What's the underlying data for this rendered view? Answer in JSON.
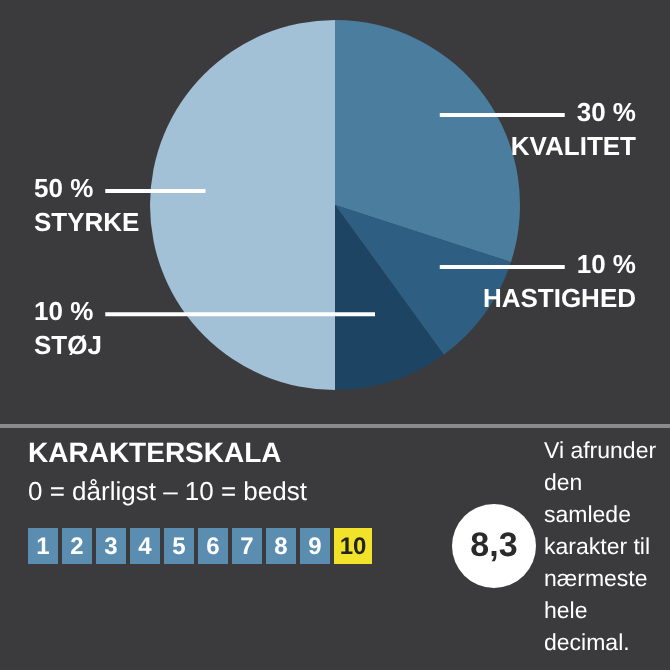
{
  "chart_data": {
    "type": "pie",
    "categories": [
      "KVALITET",
      "HASTIGHED",
      "STØJ",
      "STYRKE"
    ],
    "values": [
      30,
      10,
      10,
      50
    ],
    "colors": [
      "#4a7d9e",
      "#2e5f82",
      "#1d4563",
      "#a3c1d6"
    ],
    "value_labels": [
      "30 %",
      "10 %",
      "10 %",
      "50 %"
    ],
    "legend": false,
    "annotations": [
      "KARAKTERSKALA",
      "0 = dårligst – 10 = bedst",
      "1",
      "2",
      "3",
      "4",
      "5",
      "6",
      "7",
      "8",
      "9",
      "10",
      "8,3",
      "Vi afrunder den samlede karakter til nærmeste hele decimal."
    ]
  }
}
